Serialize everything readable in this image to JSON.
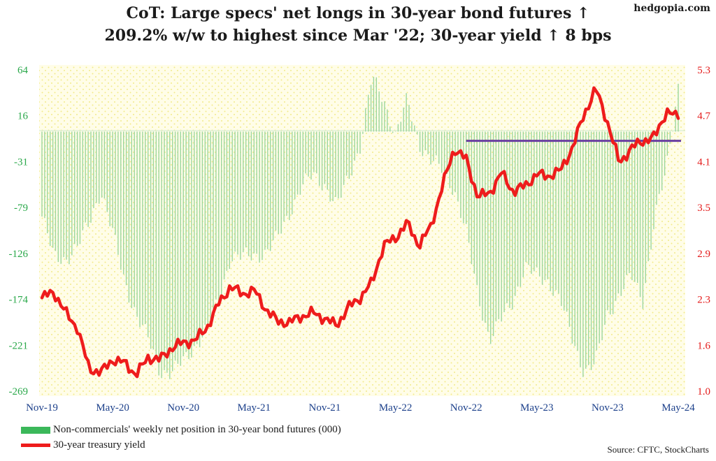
{
  "title_line1": "CoT: Large specs' net longs in 30-year bond futures ↑",
  "title_line2": "209.2% w/w to highest since Mar '22; 30-year yield ↑ 8 bps",
  "brand": "hedgopia.com",
  "source": "Source: CFTC, StockCharts",
  "legend": {
    "positions": "Non-commercials' weekly net position in 30-year bond futures (000)",
    "yield": "30-year treasury yield"
  },
  "colors": {
    "bars": "#9bd69f",
    "yield_line": "#ee1c1c",
    "reference_line": "#6a3fa0",
    "left_axis": "#2aa84a",
    "right_axis": "#e41b1b",
    "x_axis": "#1b3f8a",
    "plot_background": "#fffde8",
    "dots": "#f2ea8a"
  },
  "chart_data": {
    "type": "bar+line",
    "x_tick_labels": [
      "Nov-19",
      "May-20",
      "Nov-20",
      "May-21",
      "Nov-21",
      "May-22",
      "Nov-22",
      "May-23",
      "Nov-23",
      "May-24"
    ],
    "left_axis": {
      "tick_labels": [
        "64",
        "16",
        "-31",
        "-79",
        "-126",
        "-174",
        "-221",
        "-269"
      ],
      "ylim": [
        -269,
        64
      ]
    },
    "right_axis": {
      "tick_labels": [
        "5.3",
        "4.7",
        "4.1",
        "3.5",
        "2.9",
        "2.3",
        "1.6",
        "1.0"
      ],
      "ylim": [
        1.0,
        5.3
      ]
    },
    "reference_line": {
      "value": 4.35,
      "from": "Nov-22",
      "to": "May-24"
    },
    "series": [
      {
        "name": "Non-commercials' weekly net position in 30-year bond futures (000)",
        "kind": "bar",
        "axis": "left",
        "anchors": [
          [
            "Nov-19",
            -88
          ],
          [
            "Dec-19",
            -130
          ],
          [
            "Jan-20",
            -132
          ],
          [
            "Feb-20",
            -120
          ],
          [
            "Mar-20",
            -95
          ],
          [
            "Apr-20",
            -60
          ],
          [
            "May-20",
            -105
          ],
          [
            "Jun-20",
            -155
          ],
          [
            "Jul-20",
            -190
          ],
          [
            "Aug-20",
            -215
          ],
          [
            "Sep-20",
            -248
          ],
          [
            "Oct-20",
            -250
          ],
          [
            "Nov-20",
            -238
          ],
          [
            "Dec-20",
            -222
          ],
          [
            "Jan-21",
            -205
          ],
          [
            "Feb-21",
            -175
          ],
          [
            "Mar-21",
            -130
          ],
          [
            "Apr-21",
            -130
          ],
          [
            "May-21",
            -128
          ],
          [
            "Jun-21",
            -126
          ],
          [
            "Jul-21",
            -110
          ],
          [
            "Aug-21",
            -84
          ],
          [
            "Sep-21",
            -58
          ],
          [
            "Oct-21",
            -45
          ],
          [
            "Nov-21",
            -55
          ],
          [
            "Dec-21",
            -78
          ],
          [
            "Jan-22",
            -48
          ],
          [
            "Feb-22",
            -15
          ],
          [
            "Mar-22",
            56
          ],
          [
            "Apr-22",
            34
          ],
          [
            "May-22",
            -4
          ],
          [
            "Jun-22",
            33
          ],
          [
            "Jul-22",
            -12
          ],
          [
            "Aug-22",
            -30
          ],
          [
            "Sep-22",
            -40
          ],
          [
            "Oct-22",
            -60
          ],
          [
            "Nov-22",
            -105
          ],
          [
            "Dec-22",
            -170
          ],
          [
            "Jan-23",
            -215
          ],
          [
            "Feb-23",
            -195
          ],
          [
            "Mar-23",
            -175
          ],
          [
            "Apr-23",
            -140
          ],
          [
            "May-23",
            -150
          ],
          [
            "Jun-23",
            -155
          ],
          [
            "Jul-23",
            -175
          ],
          [
            "Aug-23",
            -215
          ],
          [
            "Sep-23",
            -248
          ],
          [
            "Oct-23",
            -240
          ],
          [
            "Nov-23",
            -190
          ],
          [
            "Dec-23",
            -168
          ],
          [
            "Jan-24",
            -150
          ],
          [
            "Feb-24",
            -175
          ],
          [
            "Mar-24",
            -90
          ],
          [
            "Apr-24",
            -40
          ],
          [
            "May-24",
            48
          ]
        ]
      },
      {
        "name": "30-year treasury yield",
        "kind": "line",
        "axis": "right",
        "anchors": [
          [
            "Nov-19",
            2.25
          ],
          [
            "Dec-19",
            2.33
          ],
          [
            "Jan-20",
            2.05
          ],
          [
            "Feb-20",
            1.85
          ],
          [
            "Mar-20",
            1.3
          ],
          [
            "Apr-20",
            1.25
          ],
          [
            "May-20",
            1.42
          ],
          [
            "Jun-20",
            1.38
          ],
          [
            "Jul-20",
            1.22
          ],
          [
            "Aug-20",
            1.45
          ],
          [
            "Sep-20",
            1.42
          ],
          [
            "Oct-20",
            1.58
          ],
          [
            "Nov-20",
            1.65
          ],
          [
            "Dec-20",
            1.68
          ],
          [
            "Jan-21",
            1.85
          ],
          [
            "Feb-21",
            2.17
          ],
          [
            "Mar-21",
            2.4
          ],
          [
            "Apr-21",
            2.3
          ],
          [
            "May-21",
            2.35
          ],
          [
            "Jun-21",
            2.1
          ],
          [
            "Jul-21",
            1.93
          ],
          [
            "Aug-21",
            1.92
          ],
          [
            "Sep-21",
            2.0
          ],
          [
            "Oct-21",
            2.05
          ],
          [
            "Nov-21",
            1.97
          ],
          [
            "Dec-21",
            1.88
          ],
          [
            "Jan-22",
            2.12
          ],
          [
            "Feb-22",
            2.25
          ],
          [
            "Mar-22",
            2.45
          ],
          [
            "Apr-22",
            2.95
          ],
          [
            "May-22",
            3.05
          ],
          [
            "Jun-22",
            3.25
          ],
          [
            "Jul-22",
            2.95
          ],
          [
            "Aug-22",
            3.2
          ],
          [
            "Sep-22",
            3.75
          ],
          [
            "Oct-22",
            4.25
          ],
          [
            "Nov-22",
            4.1
          ],
          [
            "Dec-22",
            3.6
          ],
          [
            "Jan-23",
            3.65
          ],
          [
            "Feb-23",
            3.92
          ],
          [
            "Mar-23",
            3.67
          ],
          [
            "Apr-23",
            3.75
          ],
          [
            "May-23",
            3.9
          ],
          [
            "Jun-23",
            3.88
          ],
          [
            "Jul-23",
            3.95
          ],
          [
            "Aug-23",
            4.25
          ],
          [
            "Sep-23",
            4.7
          ],
          [
            "Oct-23",
            5.05
          ],
          [
            "Nov-23",
            4.6
          ],
          [
            "Dec-23",
            4.05
          ],
          [
            "Jan-24",
            4.25
          ],
          [
            "Feb-24",
            4.35
          ],
          [
            "Mar-24",
            4.4
          ],
          [
            "Apr-24",
            4.75
          ],
          [
            "May-24",
            4.65
          ]
        ]
      }
    ]
  }
}
